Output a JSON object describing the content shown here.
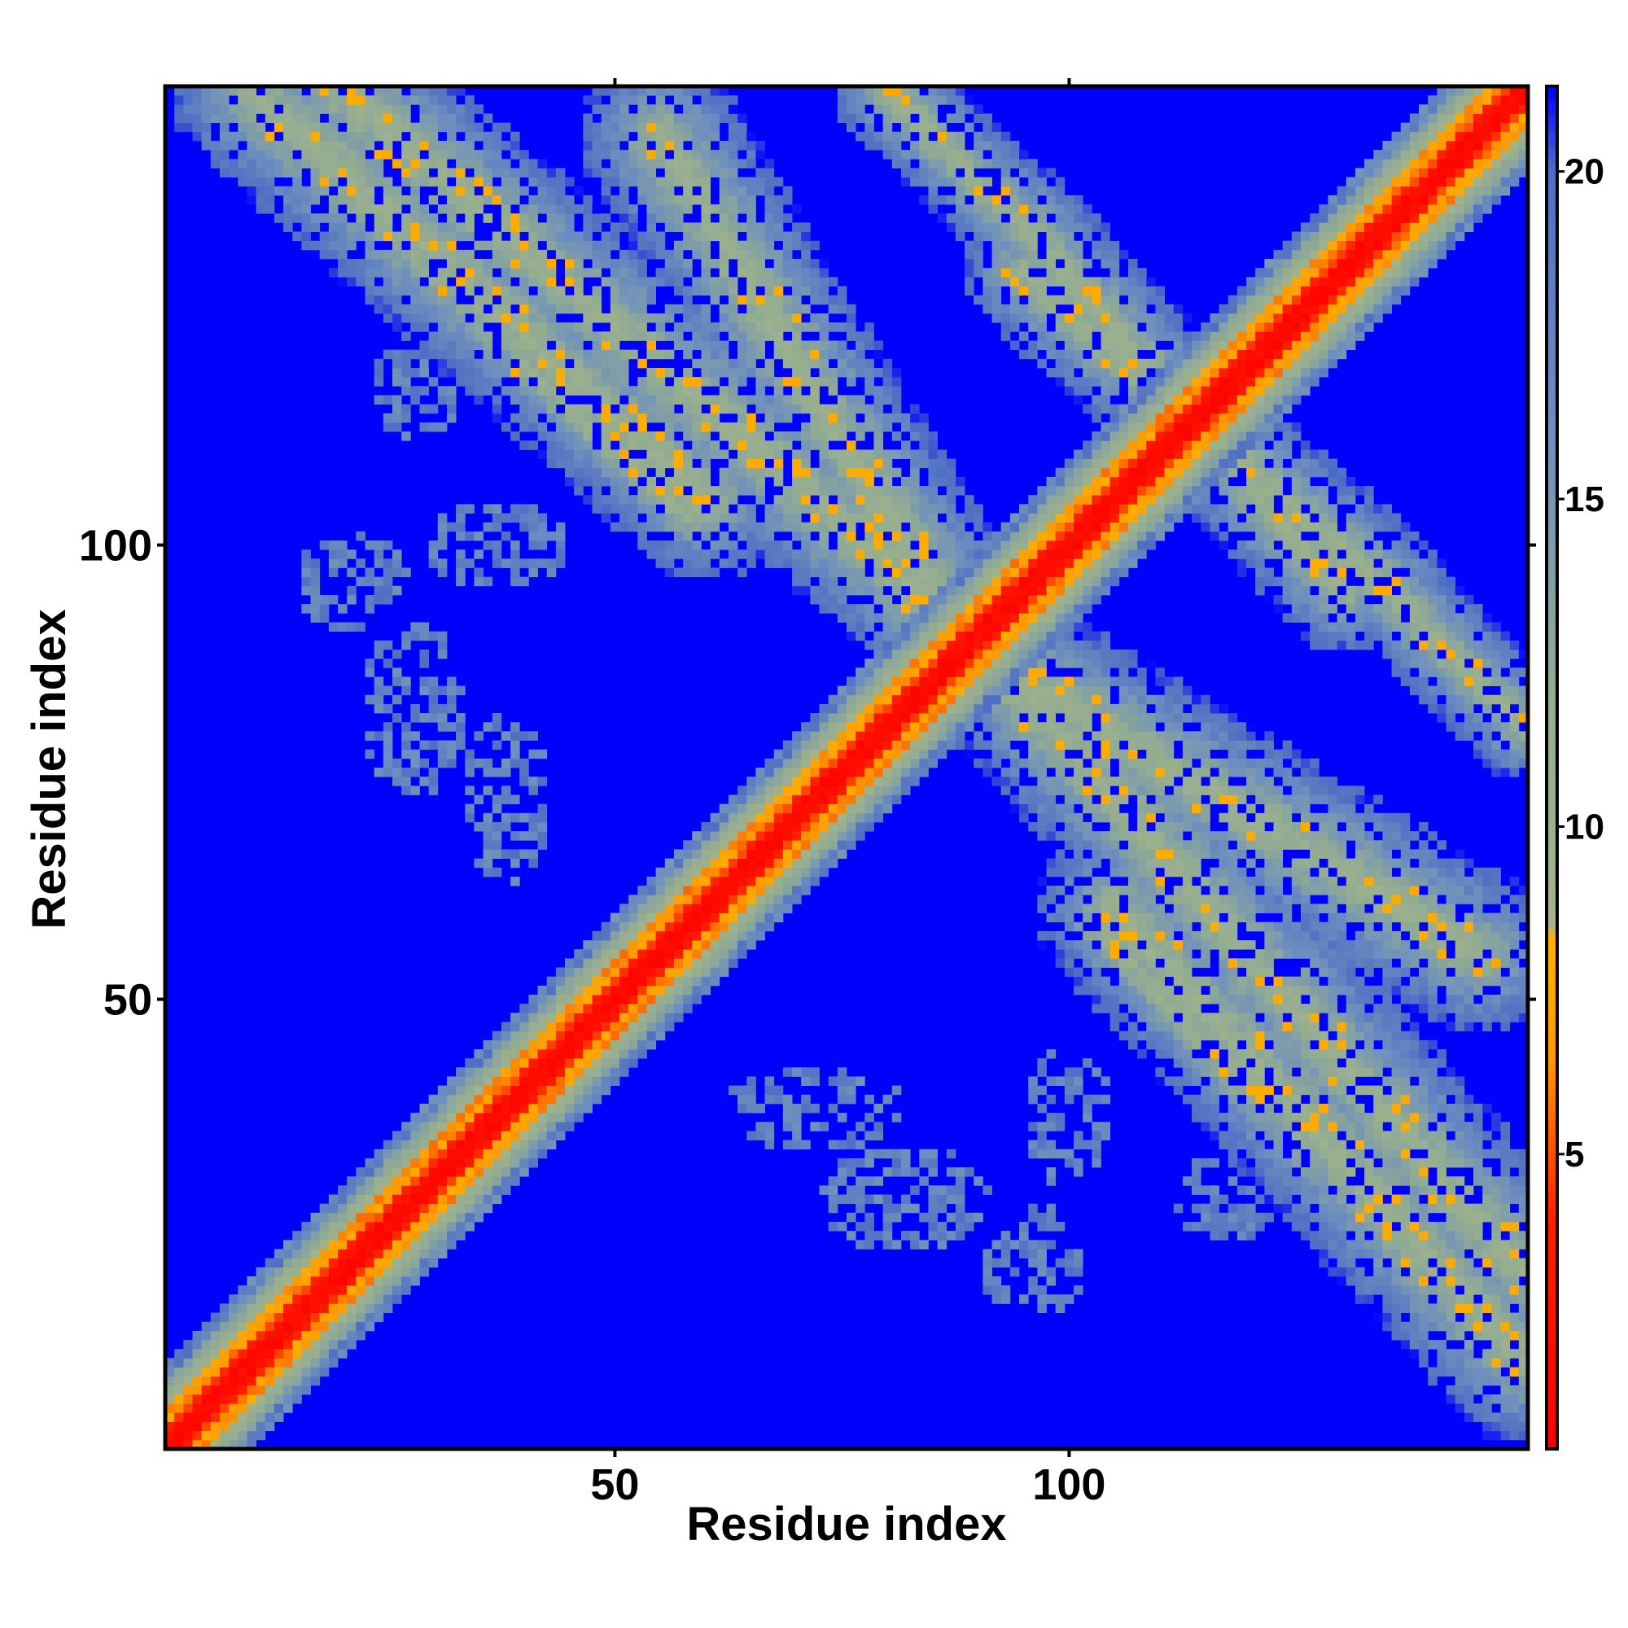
{
  "chart_data": {
    "type": "heatmap",
    "title": "",
    "xlabel": "Residue index",
    "ylabel": "Residue index",
    "x_ticks": [
      50,
      100
    ],
    "y_ticks": [
      50,
      100
    ],
    "xlim": [
      0.5,
      150.5
    ],
    "ylim": [
      0.5,
      150.5
    ],
    "n_residues": 150,
    "matrix_description": "Symmetric residue-residue distance map; red/orange near diagonal (distance ≈ 0-8), yellow-green/grey-blue contact bands (≈ 8-20), saturated blue beyond cutoff (>21).",
    "contact_bands": [
      {
        "from_residue": 10,
        "to_residue": 60,
        "partner_from": 150,
        "partner_to": 100,
        "description": "anti-diagonal band upper-left (residues ~10-60 contact ~145-100)"
      },
      {
        "from_residue": 55,
        "to_residue": 90,
        "partner_from": 150,
        "partner_to": 95,
        "description": "band crossing near residue ~85"
      },
      {
        "from_residue": 85,
        "to_residue": 150,
        "partner_from": 90,
        "partner_to": 20,
        "description": "band lower-right (residues ~85-150 contact ~90-20)"
      },
      {
        "from_residue": 60,
        "to_residue": 100,
        "partner_from": 45,
        "partner_to": 25,
        "description": "sparse patch lower-middle"
      },
      {
        "from_residue": 17,
        "to_residue": 42,
        "partner_from": 60,
        "partner_to": 95,
        "description": "sparse patch left-middle"
      }
    ],
    "colorbar": {
      "ticks": [
        5,
        10,
        15,
        20
      ],
      "range": [
        0.5,
        21.3
      ],
      "stops": [
        {
          "value": 0.5,
          "color": "#ff0000"
        },
        {
          "value": 4.0,
          "color": "#ff2000"
        },
        {
          "value": 6.5,
          "color": "#ff9a00"
        },
        {
          "value": 8.3,
          "color": "#ffb000"
        },
        {
          "value": 8.5,
          "color": "#a4b489"
        },
        {
          "value": 12.0,
          "color": "#93ac92"
        },
        {
          "value": 16.0,
          "color": "#6e8fbe"
        },
        {
          "value": 20.0,
          "color": "#4f6ec4"
        },
        {
          "value": 21.3,
          "color": "#0000ff"
        }
      ]
    },
    "colors": {
      "background_blue": "#0000ff",
      "near": "#ff0000",
      "mid": "#ff9a00",
      "band": "#93ac92",
      "band_far": "#6e8fbe"
    },
    "grid": false,
    "legend": "colorbar-right"
  }
}
